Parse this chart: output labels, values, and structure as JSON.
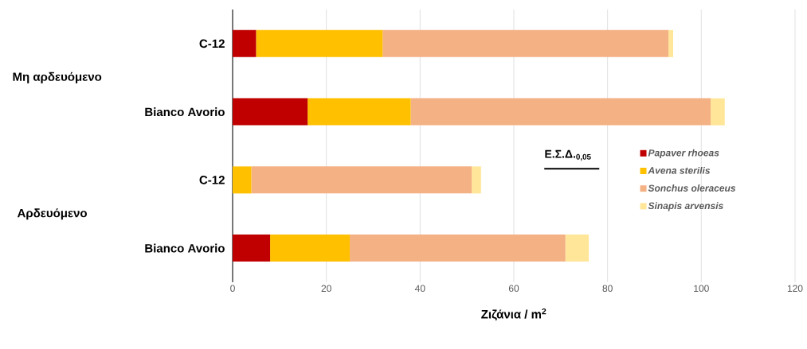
{
  "chart_data": {
    "type": "bar",
    "orientation": "horizontal",
    "stacked": true,
    "categories": [
      "C-12",
      "Bianco Avorio",
      "C-12",
      "Bianco Avorio"
    ],
    "series": [
      {
        "name": "Papaver rhoeas",
        "color": "#c00000",
        "values": [
          5,
          16,
          0,
          8
        ]
      },
      {
        "name": "Avena sterilis",
        "color": "#ffc000",
        "values": [
          27,
          22,
          4,
          17
        ]
      },
      {
        "name": "Sonchus oleraceus",
        "color": "#f4b183",
        "values": [
          61,
          64,
          47,
          46
        ]
      },
      {
        "name": "Sinapis arvensis",
        "color": "#ffe699",
        "values": [
          1,
          3,
          2,
          5
        ]
      }
    ],
    "xlabel": "Ζιζάνια / m$^{2}$",
    "xlim": [
      0,
      120
    ],
    "xticks": [
      0,
      20,
      40,
      60,
      80,
      100,
      120
    ],
    "grid": "x",
    "legend": "right",
    "annotations": [
      "Μη αρδευόμενο",
      "Αρδευόμενο",
      "Ε.Σ.Δ.$_{0,05}$"
    ]
  }
}
